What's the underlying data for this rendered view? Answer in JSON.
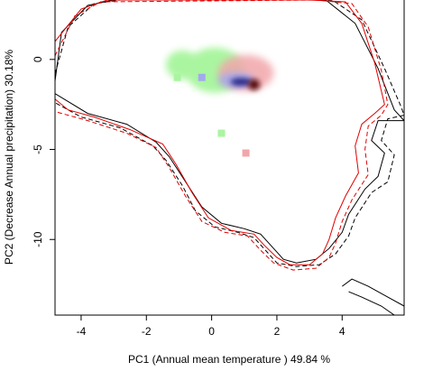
{
  "chart_data": {
    "type": "heatmap",
    "xlabel": "PC1 (Annual mean temperature ) 49.84 %",
    "ylabel": "PC2 (Decrease Annual precipitation) 30.18%",
    "xlim": [
      -4.8,
      5.9
    ],
    "ylim": [
      -14.2,
      3.3
    ],
    "x_ticks": [
      -4,
      -2,
      0,
      2,
      4
    ],
    "y_ticks": [
      0,
      -5,
      -10
    ],
    "x_tick_labels": [
      "-4",
      "-2",
      "0",
      "2",
      "4"
    ],
    "y_tick_labels": [
      "0",
      "-5",
      "-10"
    ],
    "grid": false,
    "colors": {
      "green": "#aaf5a0",
      "pink": "#f2a6aa",
      "blue_overlap": "#a3a8f0",
      "dark_blue": "#2b2a8a",
      "dark_red": "#5a1010",
      "contour_black": "#000000",
      "contour_red": "#e00000"
    },
    "density_blobs": [
      {
        "group": "green",
        "cx": 0.1,
        "cy": -0.6,
        "rx": 0.9,
        "ry": 1.25
      },
      {
        "group": "green",
        "cx": -0.9,
        "cy": -0.3,
        "rx": 0.5,
        "ry": 0.8
      },
      {
        "group": "pink",
        "cx": 1.05,
        "cy": -0.75,
        "rx": 0.85,
        "ry": 1.0
      },
      {
        "group": "overlap",
        "cx": 0.75,
        "cy": -1.15,
        "rx": 0.55,
        "ry": 0.42
      },
      {
        "group": "core_blue",
        "cx": 0.9,
        "cy": -1.25,
        "rx": 0.32,
        "ry": 0.22
      },
      {
        "group": "core_red",
        "cx": 1.3,
        "cy": -1.4,
        "rx": 0.18,
        "ry": 0.3
      }
    ],
    "squares": [
      {
        "group": "green",
        "x": -1.05,
        "y": -1.0
      },
      {
        "group": "green",
        "x": 0.3,
        "y": -4.1
      },
      {
        "group": "pink",
        "x": 1.05,
        "y": -5.2
      },
      {
        "group": "blue_overlap",
        "x": -0.3,
        "y": -1.0
      }
    ],
    "contours": [
      {
        "color": "black",
        "style": "solid",
        "points": [
          [
            -4.8,
            -1.2
          ],
          [
            -4.6,
            1.5
          ],
          [
            -3.8,
            3.0
          ],
          [
            -3.0,
            3.3
          ],
          [
            -1.0,
            3.3
          ],
          [
            3.5,
            3.3
          ],
          [
            4.4,
            2.0
          ],
          [
            5.1,
            -0.5
          ],
          [
            5.6,
            -2.8
          ],
          [
            5.9,
            -3.4
          ],
          [
            5.1,
            -3.4
          ],
          [
            4.9,
            -4.5
          ],
          [
            5.3,
            -5.2
          ],
          [
            5.1,
            -6.5
          ],
          [
            4.7,
            -7.2
          ],
          [
            4.2,
            -8.6
          ],
          [
            4.0,
            -9.6
          ],
          [
            3.6,
            -10.5
          ],
          [
            3.2,
            -11.1
          ],
          [
            2.6,
            -11.3
          ],
          [
            2.2,
            -11.1
          ],
          [
            1.8,
            -10.3
          ],
          [
            1.5,
            -9.7
          ],
          [
            1.0,
            -9.4
          ],
          [
            0.3,
            -9.1
          ],
          [
            -0.3,
            -8.2
          ],
          [
            -0.8,
            -6.8
          ],
          [
            -1.3,
            -5.4
          ],
          [
            -1.7,
            -4.6
          ],
          [
            -2.6,
            -3.6
          ],
          [
            -3.8,
            -3.0
          ],
          [
            -4.8,
            -1.9
          ]
        ]
      },
      {
        "color": "black",
        "style": "dashed",
        "points": [
          [
            -4.8,
            -0.8
          ],
          [
            -4.4,
            1.8
          ],
          [
            -3.6,
            3.1
          ],
          [
            -2.8,
            3.3
          ],
          [
            3.7,
            3.3
          ],
          [
            4.6,
            2.2
          ],
          [
            5.3,
            -0.5
          ],
          [
            5.8,
            -2.6
          ],
          [
            5.9,
            -3.1
          ],
          [
            5.4,
            -3.3
          ],
          [
            5.2,
            -4.5
          ],
          [
            5.6,
            -5.3
          ],
          [
            5.4,
            -6.8
          ],
          [
            4.9,
            -7.4
          ],
          [
            4.4,
            -8.8
          ],
          [
            4.2,
            -9.8
          ],
          [
            3.8,
            -10.8
          ],
          [
            3.3,
            -11.4
          ],
          [
            2.6,
            -11.5
          ],
          [
            2.0,
            -11.3
          ],
          [
            1.6,
            -10.5
          ],
          [
            1.3,
            -9.9
          ],
          [
            0.8,
            -9.6
          ],
          [
            0.1,
            -9.3
          ],
          [
            -0.5,
            -8.4
          ],
          [
            -0.9,
            -7.0
          ],
          [
            -1.4,
            -5.6
          ],
          [
            -1.8,
            -4.8
          ],
          [
            -2.8,
            -3.8
          ],
          [
            -4.0,
            -3.2
          ],
          [
            -4.8,
            -2.4
          ]
        ]
      },
      {
        "color": "red",
        "style": "solid",
        "points": [
          [
            -4.8,
            1.0
          ],
          [
            -4.0,
            2.8
          ],
          [
            -3.2,
            3.3
          ],
          [
            3.0,
            3.3
          ],
          [
            4.1,
            3.2
          ],
          [
            4.6,
            2.0
          ],
          [
            5.0,
            -0.2
          ],
          [
            5.3,
            -2.5
          ],
          [
            5.0,
            -3.0
          ],
          [
            4.6,
            -3.6
          ],
          [
            4.4,
            -4.8
          ],
          [
            4.5,
            -6.3
          ],
          [
            4.1,
            -7.6
          ],
          [
            3.8,
            -8.8
          ],
          [
            3.6,
            -10.0
          ],
          [
            3.4,
            -10.8
          ],
          [
            3.0,
            -11.4
          ],
          [
            2.4,
            -11.4
          ],
          [
            2.0,
            -11.0
          ],
          [
            1.6,
            -10.3
          ],
          [
            1.3,
            -9.7
          ],
          [
            0.6,
            -9.5
          ],
          [
            -0.1,
            -8.8
          ],
          [
            -0.6,
            -7.4
          ],
          [
            -1.1,
            -5.8
          ],
          [
            -1.5,
            -4.7
          ],
          [
            -2.5,
            -3.9
          ],
          [
            -3.6,
            -3.2
          ],
          [
            -4.4,
            -2.8
          ],
          [
            -4.8,
            -2.2
          ]
        ]
      },
      {
        "color": "red",
        "style": "dashed",
        "points": [
          [
            -4.8,
            0.2
          ],
          [
            -4.2,
            2.4
          ],
          [
            -3.4,
            3.2
          ],
          [
            3.2,
            3.3
          ],
          [
            4.3,
            3.1
          ],
          [
            4.8,
            1.8
          ],
          [
            5.2,
            -0.6
          ],
          [
            5.4,
            -2.5
          ],
          [
            5.2,
            -3.1
          ],
          [
            4.8,
            -3.7
          ],
          [
            4.7,
            -5.0
          ],
          [
            4.8,
            -6.4
          ],
          [
            4.3,
            -7.8
          ],
          [
            4.0,
            -9.0
          ],
          [
            3.8,
            -10.2
          ],
          [
            3.6,
            -11.0
          ],
          [
            3.2,
            -11.6
          ],
          [
            2.5,
            -11.7
          ],
          [
            1.9,
            -11.3
          ],
          [
            1.5,
            -10.6
          ],
          [
            1.1,
            -9.8
          ],
          [
            0.4,
            -9.6
          ],
          [
            -0.3,
            -9.0
          ],
          [
            -0.8,
            -7.6
          ],
          [
            -1.3,
            -6.0
          ],
          [
            -1.7,
            -4.9
          ],
          [
            -2.6,
            -4.1
          ],
          [
            -3.8,
            -3.4
          ],
          [
            -4.8,
            -2.9
          ]
        ]
      },
      {
        "color": "black",
        "style": "solid",
        "points": [
          [
            4.0,
            -12.6
          ],
          [
            4.3,
            -12.2
          ],
          [
            4.8,
            -12.6
          ],
          [
            5.4,
            -13.2
          ],
          [
            5.9,
            -13.7
          ]
        ]
      },
      {
        "color": "black",
        "style": "solid",
        "points": [
          [
            4.2,
            -12.9
          ],
          [
            4.6,
            -13.2
          ],
          [
            5.2,
            -13.7
          ],
          [
            5.6,
            -14.2
          ]
        ]
      }
    ]
  }
}
